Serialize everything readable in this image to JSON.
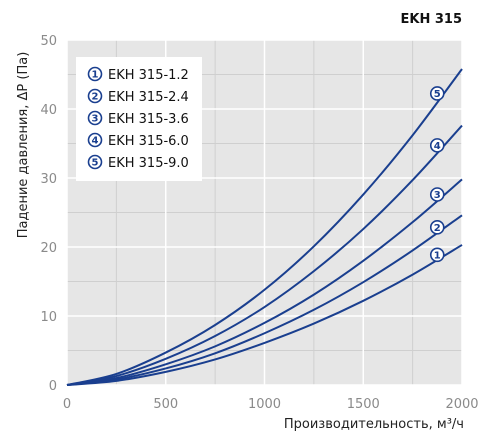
{
  "chart_data": {
    "type": "line",
    "title": "EKH 315",
    "xlabel": "Производительность, м³/ч",
    "ylabel": "Падение давления, ΔP (Па)",
    "xlim": [
      0,
      2000
    ],
    "ylim": [
      0,
      50
    ],
    "xticks": [
      0,
      500,
      1000,
      1500,
      2000
    ],
    "yticks": [
      0,
      10,
      20,
      30,
      40,
      50
    ],
    "grid": true,
    "legend_position": "top-left",
    "line_color": "#1a3f8f",
    "grid_color": "#cfcfcf",
    "background_color": "#e6e6e6",
    "series": [
      {
        "marker": "1",
        "name": "EKH 315-1.2",
        "x": [
          0,
          250,
          500,
          750,
          1000,
          1250,
          1500,
          1750,
          2000
        ],
        "values": [
          0,
          0.6,
          1.9,
          3.7,
          6.1,
          8.9,
          12.2,
          16.0,
          20.3
        ]
      },
      {
        "marker": "2",
        "name": "EKH 315-2.4",
        "x": [
          0,
          250,
          500,
          750,
          1000,
          1250,
          1500,
          1750,
          2000
        ],
        "values": [
          0,
          0.8,
          2.4,
          4.6,
          7.5,
          10.9,
          14.9,
          19.5,
          24.6
        ]
      },
      {
        "marker": "3",
        "name": "EKH 315-3.6",
        "x": [
          0,
          250,
          500,
          750,
          1000,
          1250,
          1500,
          1750,
          2000
        ],
        "values": [
          0,
          1.0,
          3.0,
          5.6,
          9.0,
          13.1,
          18.0,
          23.6,
          29.8
        ]
      },
      {
        "marker": "4",
        "name": "EKH 315-6.0",
        "x": [
          0,
          250,
          500,
          750,
          1000,
          1250,
          1500,
          1750,
          2000
        ],
        "values": [
          0,
          1.3,
          3.8,
          7.1,
          11.3,
          16.5,
          22.6,
          29.7,
          37.6
        ]
      },
      {
        "marker": "5",
        "name": "EKH 315-9.0",
        "x": [
          0,
          250,
          500,
          750,
          1000,
          1250,
          1500,
          1750,
          2000
        ],
        "values": [
          0,
          1.6,
          4.7,
          8.7,
          13.8,
          20.1,
          27.6,
          36.2,
          45.8
        ]
      }
    ]
  }
}
